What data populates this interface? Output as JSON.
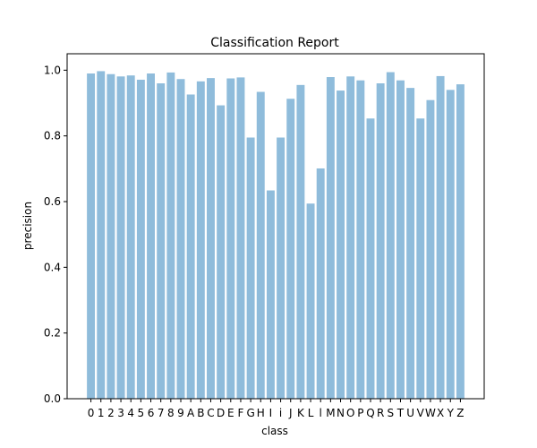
{
  "chart_data": {
    "type": "bar",
    "title": "Classification Report",
    "xlabel": "class",
    "ylabel": "precision",
    "ylim": [
      0,
      1.05
    ],
    "yticks": [
      "0.0",
      "0.2",
      "0.4",
      "0.6",
      "0.8",
      "1.0"
    ],
    "bar_color": "#8fbcdb",
    "categories": [
      "0",
      "1",
      "2",
      "3",
      "4",
      "5",
      "6",
      "7",
      "8",
      "9",
      "A",
      "B",
      "C",
      "D",
      "E",
      "F",
      "G",
      "H",
      "I",
      "i",
      "J",
      "K",
      "L",
      "l",
      "M",
      "N",
      "O",
      "P",
      "Q",
      "R",
      "S",
      "T",
      "U",
      "V",
      "W",
      "X",
      "Y",
      "Z"
    ],
    "values": [
      0.99,
      0.997,
      0.988,
      0.981,
      0.984,
      0.971,
      0.99,
      0.96,
      0.993,
      0.973,
      0.926,
      0.966,
      0.976,
      0.893,
      0.975,
      0.978,
      0.795,
      0.934,
      0.634,
      0.795,
      0.913,
      0.955,
      0.594,
      0.701,
      0.979,
      0.938,
      0.981,
      0.969,
      0.853,
      0.96,
      0.994,
      0.969,
      0.946,
      0.853,
      0.909,
      0.982,
      0.94,
      0.957
    ]
  }
}
